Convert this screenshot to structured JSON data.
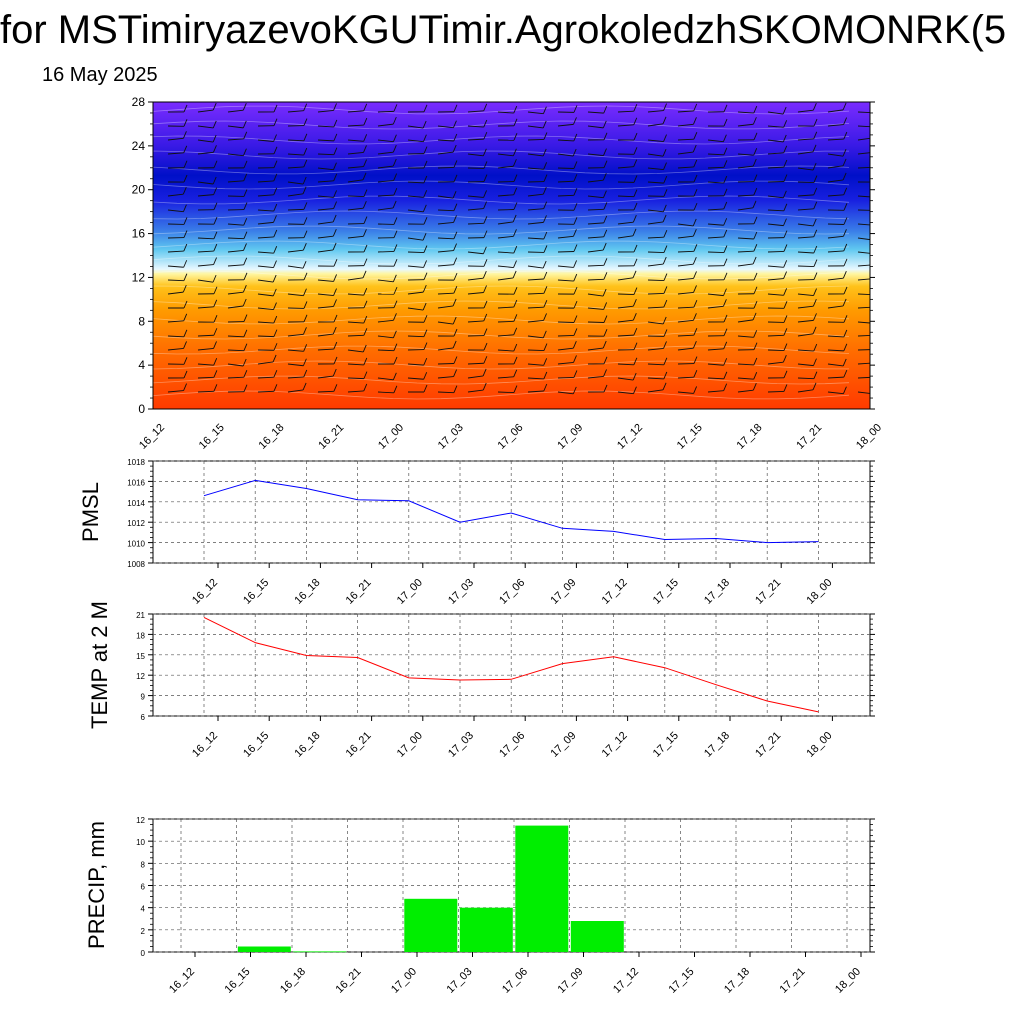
{
  "title": "for MSTimiryazevoKGUTimir.AgrokoledzhSKOMONRK(5",
  "date": "16 May 2025",
  "chart_data": [
    {
      "type": "heatmap",
      "description_shown": "cross-section contour with wind barbs",
      "ylim": [
        0,
        28
      ],
      "yticks": [
        0,
        4,
        8,
        12,
        16,
        20,
        24,
        28
      ],
      "xtick_labels": [
        "16_12",
        "16_15",
        "16_18",
        "16_21",
        "17_00",
        "17_03",
        "17_06",
        "17_09",
        "17_12",
        "17_15",
        "17_18",
        "17_21",
        "18_00"
      ],
      "grid": false
    },
    {
      "type": "line",
      "ylabel": "PMSL",
      "color": "#0000ff",
      "ylim": [
        1008,
        1018
      ],
      "yticks": [
        1008,
        1010,
        1012,
        1014,
        1016,
        1018
      ],
      "x": [
        "16_12",
        "16_15",
        "16_18",
        "16_21",
        "17_00",
        "17_03",
        "17_06",
        "17_09",
        "17_12",
        "17_15",
        "17_18",
        "17_21",
        "18_00"
      ],
      "values": [
        1014.6,
        1016.1,
        1015.3,
        1014.2,
        1014.1,
        1012.0,
        1012.9,
        1011.4,
        1011.1,
        1010.3,
        1010.4,
        1010.0,
        1010.1
      ],
      "grid": true
    },
    {
      "type": "line",
      "ylabel": "TEMP at 2 M",
      "color": "#ff0000",
      "ylim": [
        6,
        21
      ],
      "yticks": [
        6,
        9,
        12,
        15,
        18,
        21
      ],
      "x": [
        "16_12",
        "16_15",
        "16_18",
        "16_21",
        "17_00",
        "17_03",
        "17_06",
        "17_09",
        "17_12",
        "17_15",
        "17_18",
        "17_21",
        "18_00"
      ],
      "values": [
        20.5,
        16.8,
        14.9,
        14.6,
        11.6,
        11.3,
        11.4,
        13.7,
        14.7,
        13.1,
        10.6,
        8.2,
        6.6
      ],
      "grid": true
    },
    {
      "type": "bar",
      "ylabel": "PRECIP, mm",
      "color": "#00ee00",
      "ylim": [
        0,
        12
      ],
      "yticks": [
        0,
        2,
        4,
        6,
        8,
        10,
        12
      ],
      "categories": [
        "16_12",
        "16_15",
        "16_18",
        "16_21",
        "17_00",
        "17_03",
        "17_06",
        "17_09",
        "17_12",
        "17_15",
        "17_18",
        "17_21",
        "18_00"
      ],
      "values": [
        0,
        0.5,
        0.05,
        0,
        4.8,
        4.0,
        11.4,
        2.8,
        0,
        0,
        0,
        0,
        0
      ],
      "grid": true
    }
  ]
}
